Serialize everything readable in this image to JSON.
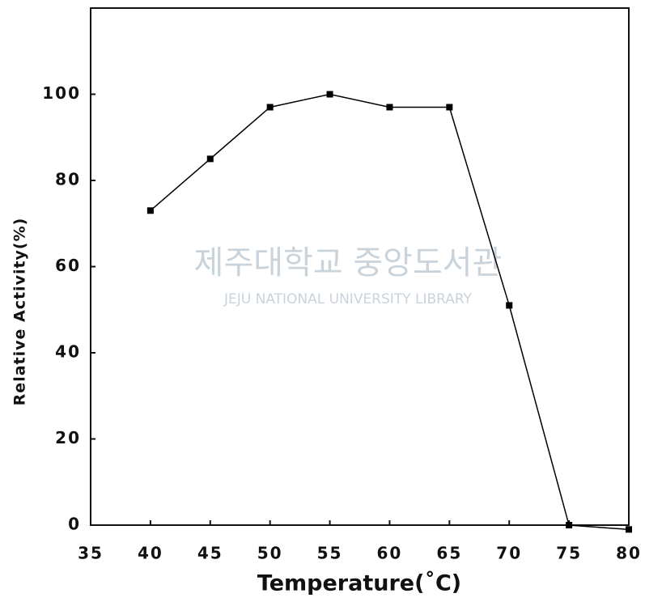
{
  "chart_data": {
    "type": "line",
    "x_label": "Temperature(˚C)",
    "y_label": "Relative Activity(%)",
    "watermark": [
      "제주대학교 중앙도서관",
      "JEJU NATIONAL UNIVERSITY  LIBRARY"
    ],
    "x": [
      40,
      45,
      50,
      55,
      60,
      65,
      70,
      75,
      80
    ],
    "series": [
      {
        "color": "#000000",
        "values": [
          73,
          85,
          97,
          100,
          97,
          97,
          51,
          0,
          -1
        ]
      }
    ],
    "xlim": [
      35,
      80
    ],
    "xticks": [
      35,
      40,
      45,
      50,
      55,
      60,
      65,
      70,
      75,
      80
    ],
    "ylim": [
      0,
      120
    ],
    "yticks": [
      0,
      20,
      40,
      60,
      80,
      100
    ],
    "grid": false
  }
}
